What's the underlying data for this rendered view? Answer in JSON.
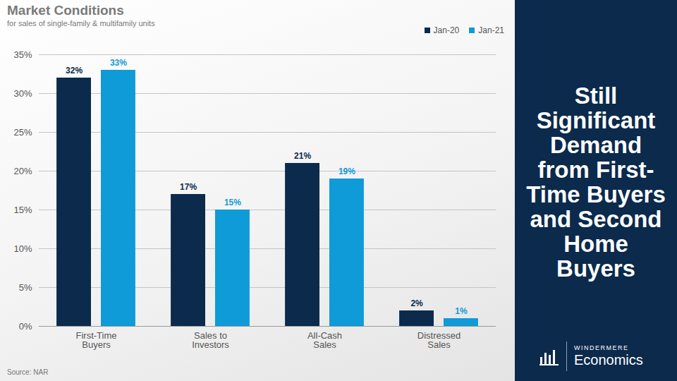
{
  "chart_data": {
    "type": "bar",
    "title": "Market Conditions",
    "subtitle": "for sales of single-family & multifamily units",
    "categories": [
      "First-Time Buyers",
      "Sales to Investors",
      "All-Cash Sales",
      "Distressed Sales"
    ],
    "series": [
      {
        "name": "Jan-20",
        "color": "#0b2a4c",
        "values": [
          32,
          17,
          21,
          2
        ],
        "value_labels": [
          "32%",
          "17%",
          "21%",
          "2%"
        ]
      },
      {
        "name": "Jan-21",
        "color": "#0f9ad8",
        "values": [
          33,
          15,
          19,
          1
        ],
        "value_labels": [
          "33%",
          "15%",
          "19%",
          "1%"
        ]
      }
    ],
    "ylim": [
      0,
      35
    ],
    "yticks": [
      {
        "value": 0,
        "label": "0%"
      },
      {
        "value": 5,
        "label": "5%"
      },
      {
        "value": 10,
        "label": "10%"
      },
      {
        "value": 15,
        "label": "15%"
      },
      {
        "value": 20,
        "label": "20%"
      },
      {
        "value": 25,
        "label": "25%"
      },
      {
        "value": 30,
        "label": "30%"
      },
      {
        "value": 35,
        "label": "35%"
      }
    ],
    "grid": true,
    "legend": "top-right",
    "data_labels": true,
    "source": "Source: NAR"
  },
  "side_panel": {
    "headline": "Still Significant Demand from First-Time Buyers and Second Home Buyers",
    "brand": "WINDERMERE",
    "brand_sub": "Economics"
  }
}
